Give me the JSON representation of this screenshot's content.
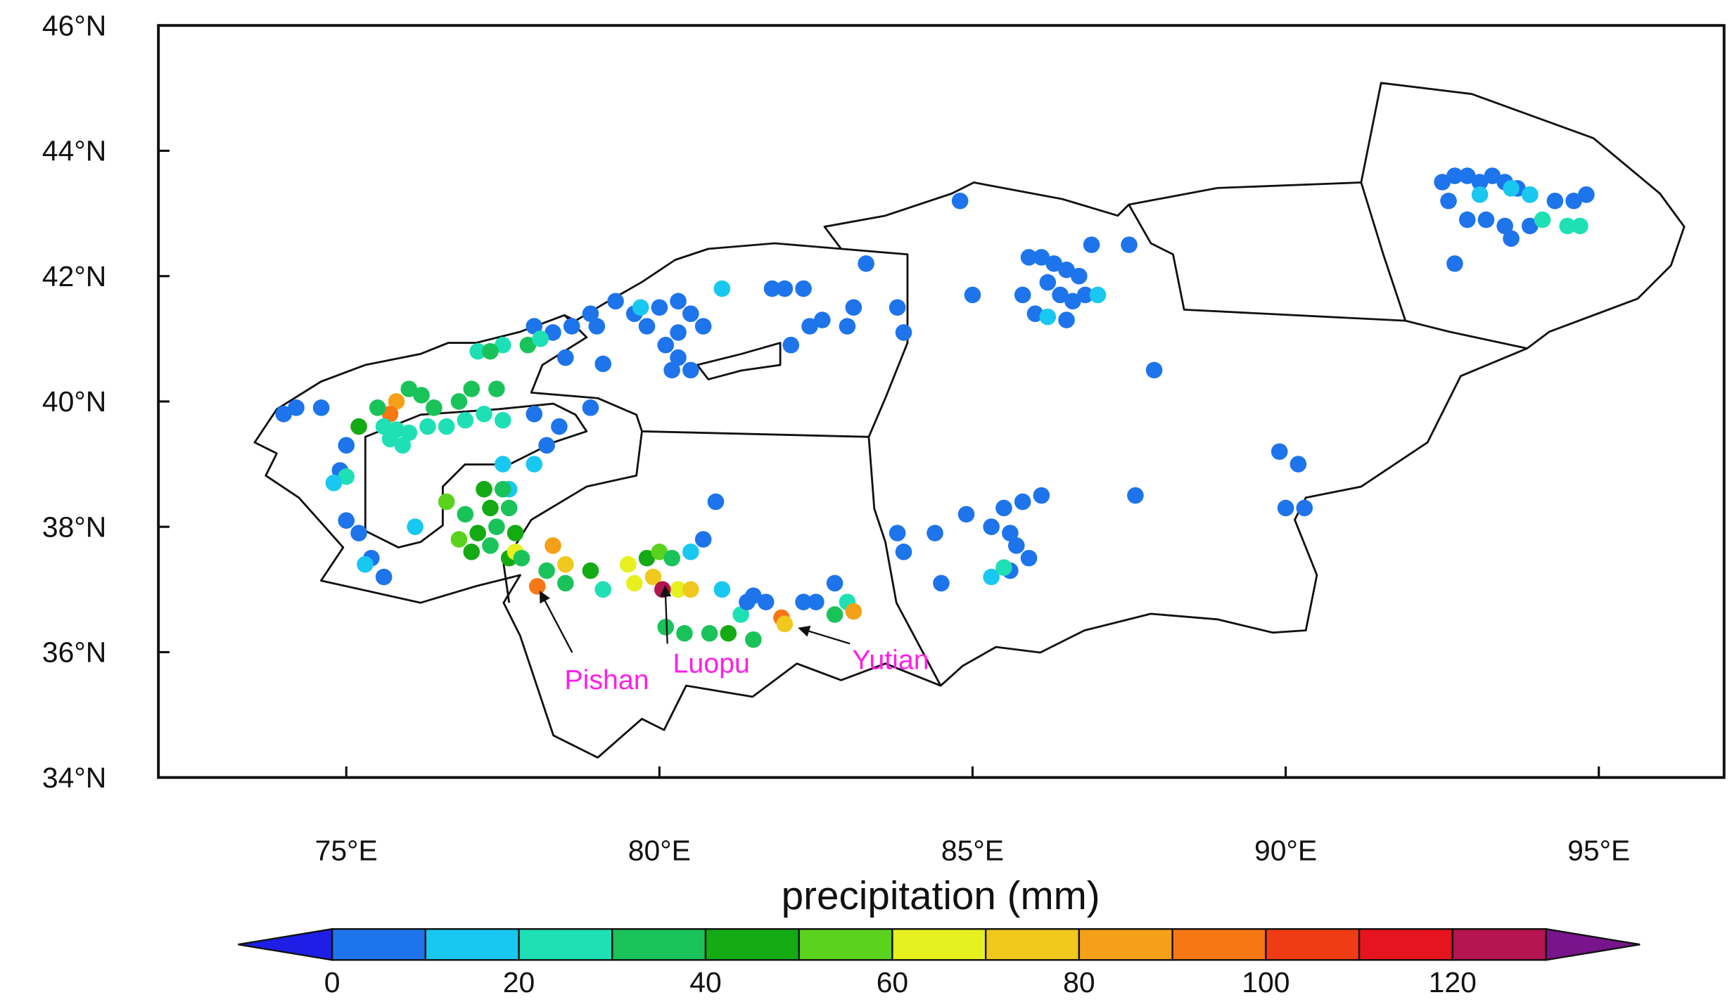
{
  "chart_data": {
    "type": "scatter",
    "xlim": [
      72,
      97
    ],
    "ylim": [
      34,
      46
    ],
    "xticks": [
      {
        "value": 75,
        "label": "75°E"
      },
      {
        "value": 80,
        "label": "80°E"
      },
      {
        "value": 85,
        "label": "85°E"
      },
      {
        "value": 90,
        "label": "90°E"
      },
      {
        "value": 95,
        "label": "95°E"
      }
    ],
    "yticks": [
      {
        "value": 34,
        "label": "34°N"
      },
      {
        "value": 36,
        "label": "36°N"
      },
      {
        "value": 38,
        "label": "38°N"
      },
      {
        "value": 40,
        "label": "40°N"
      },
      {
        "value": 42,
        "label": "42°N"
      },
      {
        "value": 44,
        "label": "44°N"
      },
      {
        "value": 46,
        "label": "46°N"
      }
    ],
    "x": [
      92.5,
      92.7,
      92.9,
      93.1,
      93.3,
      93.5,
      93.7,
      93.9,
      94.3,
      94.6,
      94.8,
      92.6,
      92.9,
      93.2,
      93.5,
      93.6,
      93.9,
      92.7,
      93.1,
      93.6,
      93.9,
      94.1,
      94.5,
      94.7,
      85.9,
      86.1,
      86.3,
      86.5,
      86.7,
      86.2,
      86.4,
      86.6,
      85.8,
      86.9,
      87.5,
      85.0,
      86.0,
      86.5,
      86.8,
      86.2,
      87.0,
      84.8,
      87.9,
      89.9,
      90.2,
      90.0,
      90.3,
      87.6,
      85.5,
      85.8,
      86.1,
      85.3,
      85.6,
      85.7,
      85.9,
      85.6,
      84.9,
      84.4,
      83.8,
      83.9,
      84.5,
      85.3,
      85.5,
      81.8,
      82.0,
      82.3,
      83.3,
      83.1,
      83.0,
      82.6,
      82.4,
      83.8,
      83.9,
      82.1,
      81.0,
      80.0,
      80.3,
      80.5,
      80.3,
      80.1,
      80.3,
      80.5,
      80.2,
      79.6,
      79.3,
      79.0,
      78.6,
      78.9,
      79.8,
      80.7,
      78.3,
      78.0,
      78.5,
      79.1,
      79.7,
      77.5,
      77.9,
      78.1,
      77.1,
      77.3,
      76.0,
      76.2,
      75.8,
      75.7,
      75.5,
      75.2,
      75.6,
      75.8,
      76.0,
      76.3,
      76.6,
      76.9,
      77.2,
      77.5,
      75.7,
      75.9,
      76.4,
      77.0,
      77.4,
      76.8,
      74.6,
      74.2,
      74.0,
      75.0,
      74.9,
      75.0,
      75.2,
      75.4,
      75.6,
      78.0,
      78.2,
      78.9,
      78.4,
      78.0,
      77.5,
      77.6,
      76.1,
      75.0,
      74.8,
      75.3,
      77.2,
      77.5,
      77.3,
      77.6,
      76.9,
      77.1,
      77.4,
      77.7,
      76.8,
      77.0,
      77.3,
      77.6,
      77.7,
      76.6,
      78.05,
      78.3,
      78.5,
      77.8,
      78.2,
      78.5,
      78.9,
      79.1,
      79.6,
      79.9,
      80.3,
      80.5,
      79.5,
      79.8,
      80.0,
      80.2,
      80.5,
      80.7,
      80.9,
      80.1,
      80.4,
      80.8,
      81.1,
      81.5,
      81.3,
      81.0,
      81.5,
      81.7,
      81.4,
      82.3,
      82.5,
      82.8,
      83.0,
      82.8,
      81.95,
      82.0,
      83.1,
      80.05
    ],
    "values": [
      43.5,
      43.6,
      43.6,
      43.5,
      43.6,
      43.5,
      43.4,
      43.3,
      43.2,
      43.2,
      43.3,
      43.2,
      42.9,
      42.9,
      42.8,
      42.6,
      42.8,
      42.2,
      43.3,
      43.4,
      43.3,
      42.9,
      42.8,
      42.8,
      42.3,
      42.3,
      42.2,
      42.1,
      42.0,
      41.9,
      41.7,
      41.6,
      41.7,
      42.5,
      42.5,
      41.7,
      41.4,
      41.3,
      41.7,
      41.35,
      41.7,
      43.2,
      40.5,
      39.2,
      39.0,
      38.3,
      38.3,
      38.5,
      38.3,
      38.4,
      38.5,
      38.0,
      37.9,
      37.7,
      37.5,
      37.3,
      38.2,
      37.9,
      37.9,
      37.6,
      37.1,
      37.2,
      37.35,
      41.8,
      41.8,
      41.8,
      42.2,
      41.5,
      41.2,
      41.3,
      41.2,
      41.5,
      41.1,
      40.9,
      41.8,
      41.5,
      41.6,
      41.4,
      41.1,
      40.9,
      40.7,
      40.5,
      40.5,
      41.4,
      41.6,
      41.2,
      41.2,
      41.4,
      41.2,
      41.2,
      41.1,
      41.2,
      40.7,
      40.6,
      41.5,
      40.9,
      40.9,
      41.0,
      40.8,
      40.8,
      40.2,
      40.1,
      40.0,
      39.8,
      39.9,
      39.6,
      39.6,
      39.55,
      39.5,
      39.6,
      39.6,
      39.7,
      39.8,
      39.7,
      39.4,
      39.3,
      39.9,
      40.2,
      40.2,
      40.0,
      39.9,
      39.9,
      39.8,
      39.3,
      38.9,
      38.1,
      37.9,
      37.5,
      37.2,
      39.8,
      39.3,
      39.9,
      39.6,
      39.0,
      39.0,
      38.6,
      38.0,
      38.8,
      38.7,
      37.4,
      38.6,
      38.6,
      38.3,
      38.3,
      38.2,
      37.9,
      38.0,
      37.9,
      37.8,
      37.6,
      37.7,
      37.5,
      37.6,
      38.4,
      37.05,
      37.7,
      37.4,
      37.5,
      37.3,
      37.1,
      37.3,
      37.0,
      37.1,
      37.2,
      37.0,
      37.0,
      37.4,
      37.5,
      37.6,
      37.5,
      37.6,
      37.8,
      38.4,
      36.4,
      36.3,
      36.3,
      36.3,
      36.2,
      36.6,
      37.0,
      36.9,
      36.8,
      36.8,
      36.8,
      36.8,
      37.1,
      36.8,
      36.6,
      36.55,
      36.45,
      36.65,
      37.0
    ],
    "color_values": [
      5,
      5,
      5,
      5,
      5,
      5,
      5,
      5,
      5,
      5,
      5,
      5,
      5,
      5,
      5,
      5,
      5,
      5,
      15,
      15,
      15,
      25,
      25,
      25,
      5,
      5,
      5,
      5,
      5,
      5,
      5,
      5,
      5,
      5,
      5,
      5,
      5,
      5,
      5,
      15,
      15,
      5,
      5,
      5,
      5,
      5,
      5,
      5,
      5,
      5,
      5,
      5,
      5,
      5,
      5,
      5,
      5,
      5,
      5,
      5,
      5,
      15,
      25,
      5,
      5,
      5,
      5,
      5,
      5,
      5,
      5,
      5,
      5,
      5,
      15,
      5,
      5,
      5,
      5,
      5,
      5,
      5,
      5,
      5,
      5,
      5,
      5,
      5,
      5,
      5,
      5,
      5,
      5,
      5,
      15,
      25,
      35,
      25,
      25,
      35,
      35,
      35,
      85,
      95,
      35,
      45,
      25,
      25,
      25,
      25,
      25,
      25,
      25,
      25,
      25,
      25,
      35,
      35,
      35,
      35,
      5,
      5,
      5,
      5,
      5,
      5,
      5,
      5,
      5,
      5,
      5,
      5,
      5,
      15,
      15,
      15,
      15,
      25,
      15,
      15,
      45,
      35,
      45,
      35,
      35,
      45,
      35,
      45,
      55,
      45,
      35,
      45,
      65,
      55,
      95,
      85,
      75,
      35,
      35,
      35,
      45,
      25,
      65,
      75,
      65,
      75,
      65,
      45,
      55,
      35,
      15,
      5,
      5,
      35,
      35,
      35,
      45,
      35,
      25,
      15,
      5,
      5,
      5,
      5,
      5,
      5,
      25,
      35,
      95,
      75,
      80,
      125
    ],
    "colorbar": {
      "label": "precipitation (mm)",
      "levels": [
        0,
        10,
        20,
        30,
        40,
        50,
        60,
        70,
        80,
        90,
        100,
        110,
        120,
        130
      ],
      "colors": [
        "#1e74ea",
        "#19c8f0",
        "#1ee0b4",
        "#19c35a",
        "#14aa14",
        "#5ad21e",
        "#e6f01e",
        "#f0c81e",
        "#f5a019",
        "#f57814",
        "#f03c14",
        "#e6141e",
        "#b41450"
      ],
      "under_color": "#1e1ee6",
      "over_color": "#78148c",
      "ticks": [
        0,
        20,
        40,
        60,
        80,
        100,
        120
      ]
    },
    "annotations": [
      "Pishan",
      "Luopu",
      "Yutian"
    ]
  }
}
